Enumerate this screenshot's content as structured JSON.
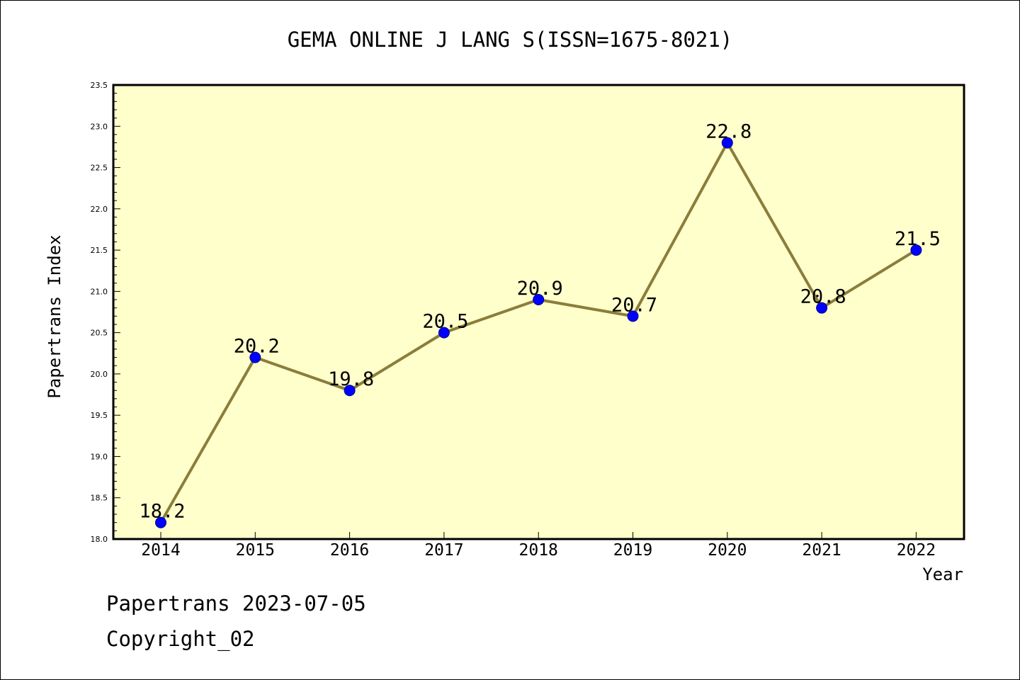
{
  "chart_data": {
    "type": "line",
    "title": "GEMA ONLINE J LANG S(ISSN=1675-8021)",
    "xlabel": "Year",
    "ylabel": "Papertrans Index",
    "categories": [
      "2014",
      "2015",
      "2016",
      "2017",
      "2018",
      "2019",
      "2020",
      "2021",
      "2022"
    ],
    "values": [
      18.2,
      20.2,
      19.8,
      20.5,
      20.9,
      20.7,
      22.8,
      20.8,
      21.5
    ],
    "data_labels": [
      "18.2",
      "20.2",
      "19.8",
      "20.5",
      "20.9",
      "20.7",
      "22.8",
      "20.8",
      "21.5"
    ],
    "ylim": [
      18.0,
      23.5
    ],
    "yticks": [
      "18.0",
      "18.5",
      "19.0",
      "19.5",
      "20.0",
      "20.5",
      "21.0",
      "21.5",
      "22.0",
      "22.5",
      "23.0",
      "23.5"
    ],
    "grid": false,
    "colors": {
      "plot_background": "#ffffcc",
      "line": "#8b7d3a",
      "marker_fill": "#0000ff",
      "marker_edge": "#00008b"
    }
  },
  "footer": {
    "source": "Papertrans 2023-07-05",
    "copyright": "Copyright_02"
  }
}
